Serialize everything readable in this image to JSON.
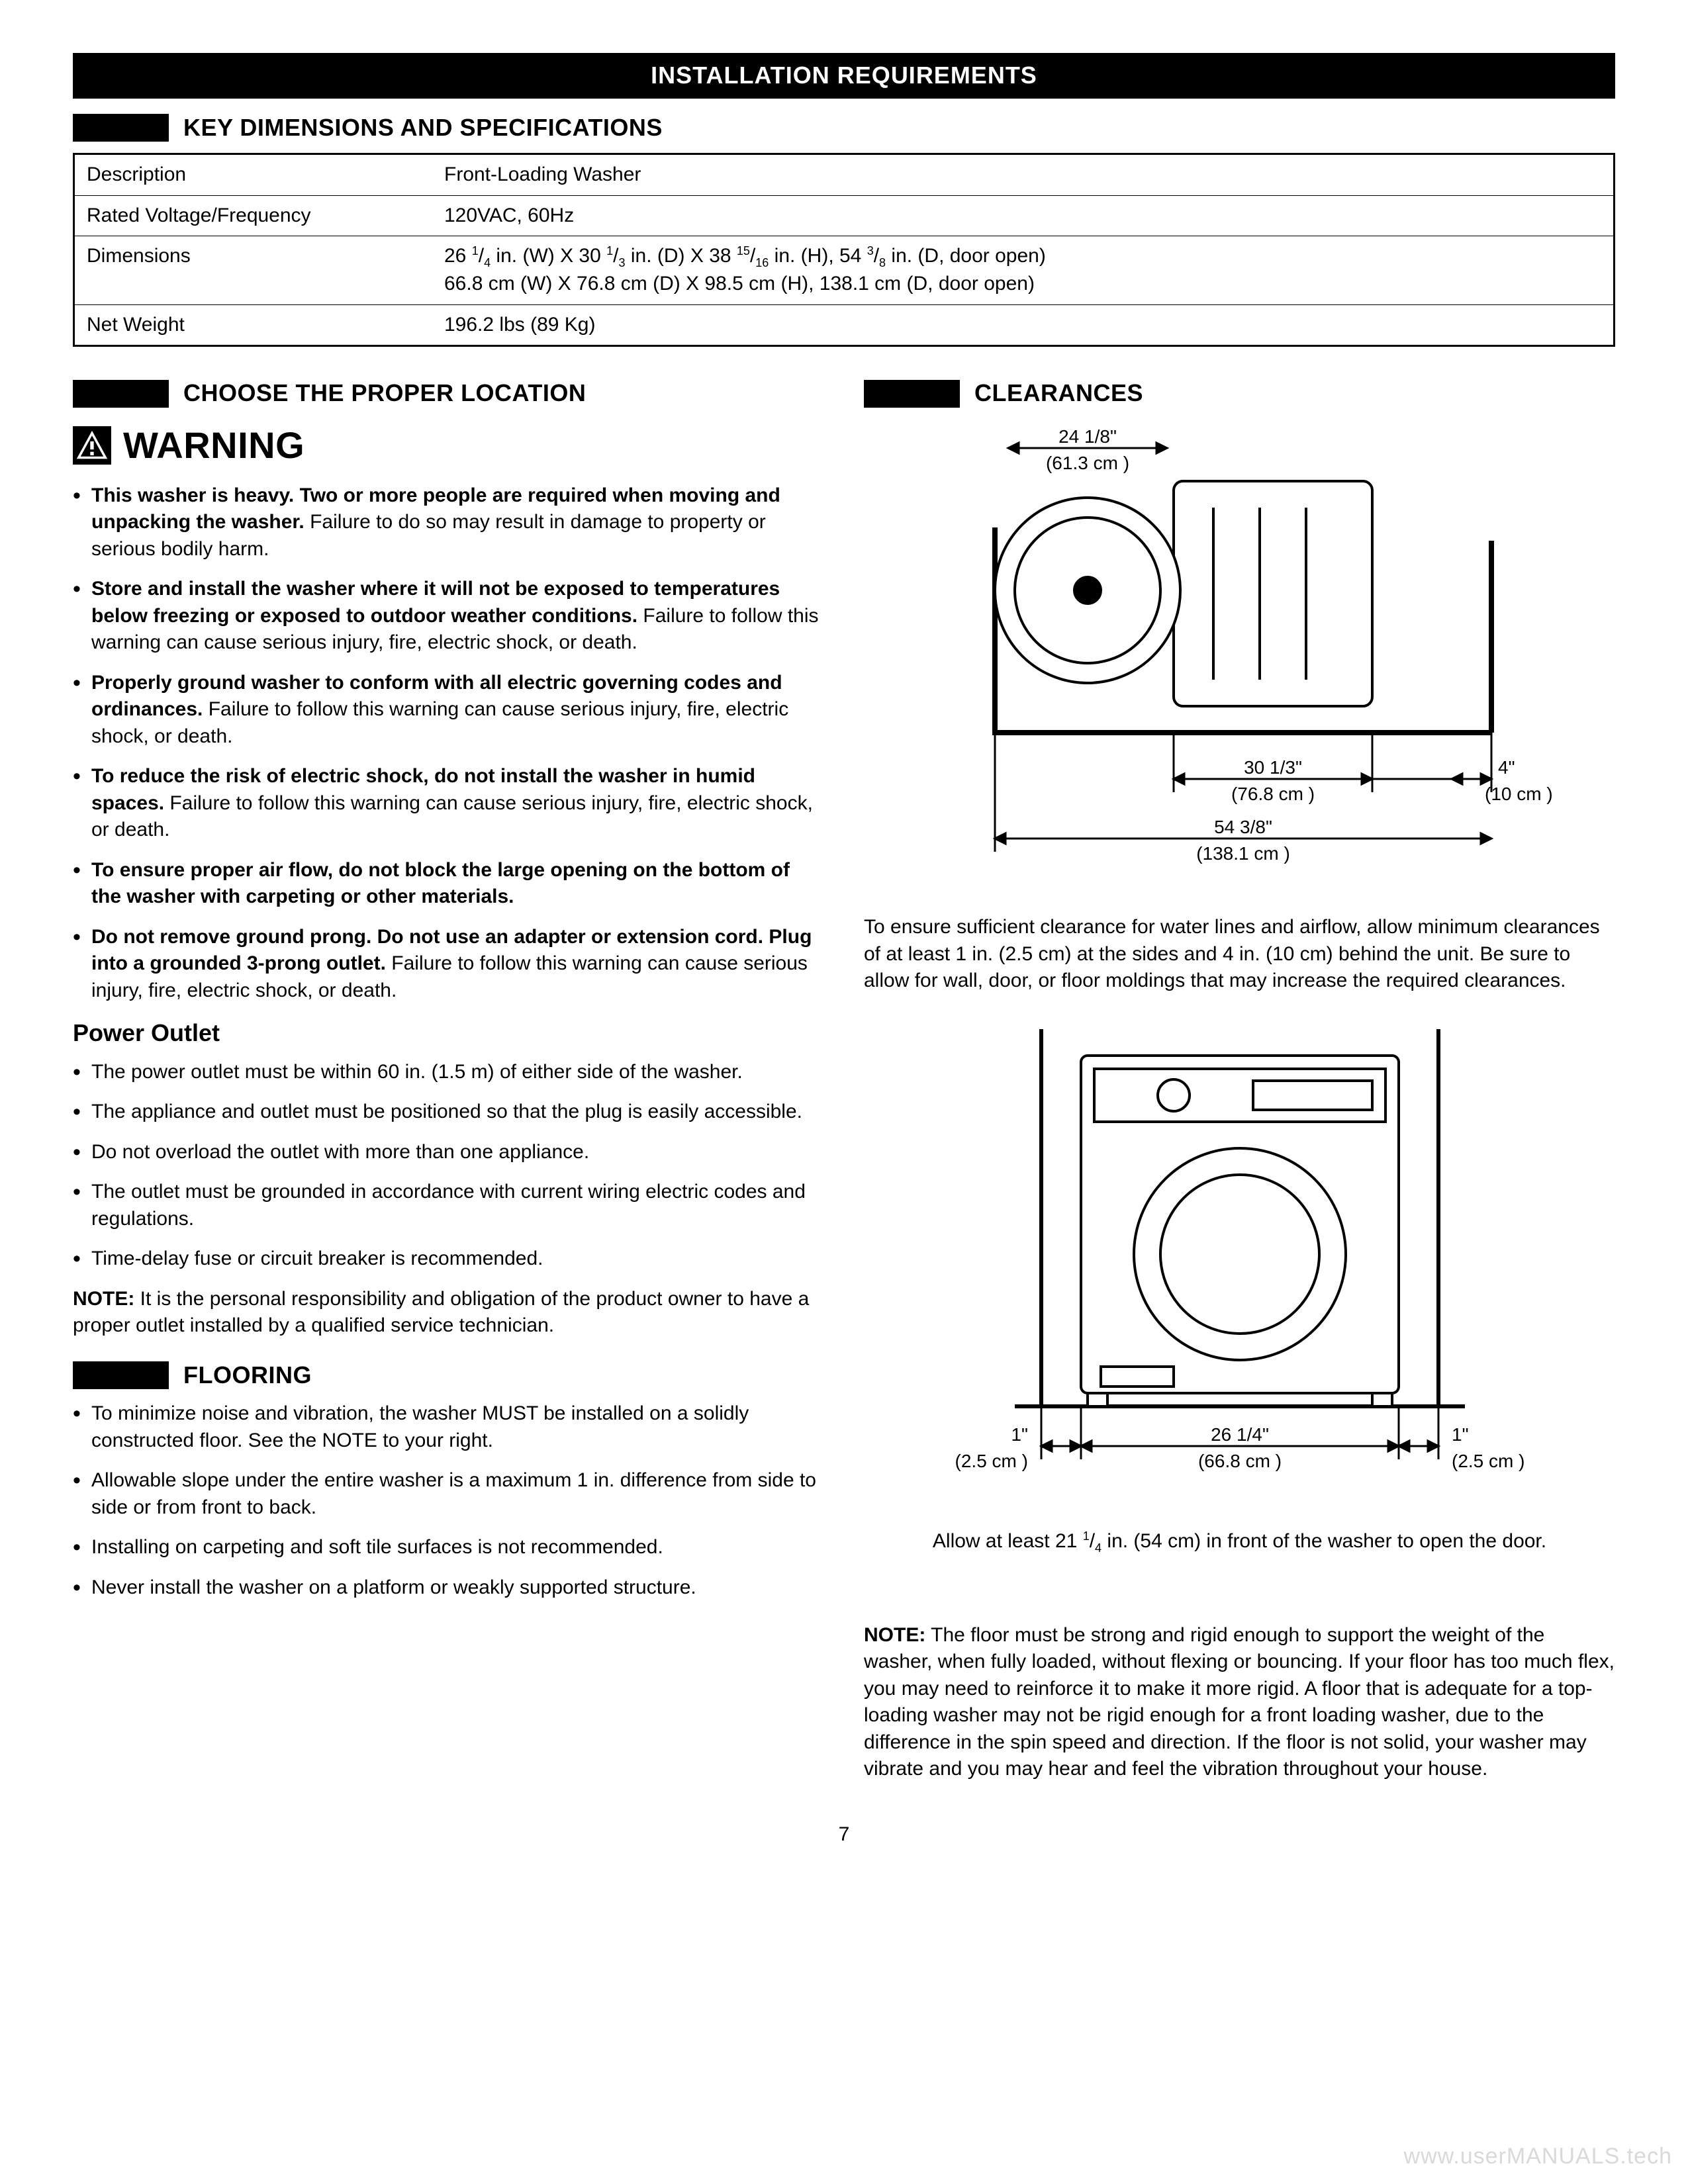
{
  "banner": "INSTALLATION REQUIREMENTS",
  "sections": {
    "keydim": "KEY DIMENSIONS AND SPECIFICATIONS",
    "choose": "CHOOSE THE PROPER LOCATION",
    "clear": "CLEARANCES",
    "floor": "FLOORING"
  },
  "spec": {
    "rows": [
      {
        "label": "Description",
        "value": "Front-Loading Washer"
      },
      {
        "label": "Rated Voltage/Frequency",
        "value": "120VAC, 60Hz"
      },
      {
        "label": "Dimensions",
        "value_html": "26 <sup>1</sup>/<sub>4</sub> in. (W) X 30 <sup>1</sup>/<sub>3</sub> in. (D) X 38 <sup>15</sup>/<sub>16</sub> in. (H), 54 <sup>3</sup>/<sub>8</sub> in. (D, door open)<br>66.8 cm (W) X 76.8 cm (D) X 98.5 cm (H), 138.1 cm (D, door open)"
      },
      {
        "label": "Net Weight",
        "value": "196.2 lbs (89 Kg)"
      }
    ]
  },
  "warning": {
    "label": "WARNING",
    "items": [
      {
        "bold": "This washer is heavy. Two or more people are required when  moving and unpacking the washer.",
        "rest": " Failure to do so may result in damage to property or serious bodily harm."
      },
      {
        "bold": "Store and install the washer where it will not be exposed to temperatures below freezing or exposed to outdoor weather conditions.",
        "rest": " Failure to follow this warning can cause serious injury, fire, electric shock, or death."
      },
      {
        "bold": "Properly ground washer to conform with all electric governing codes and ordinances.",
        "rest": " Failure to follow this warning can cause serious injury, fire, electric shock, or death."
      },
      {
        "bold": "To reduce the risk of electric shock, do not install the washer in humid spaces.",
        "rest": " Failure to follow this warning can cause serious injury, fire, electric shock, or death."
      },
      {
        "bold": "To ensure proper air flow, do not block the large opening on the bottom of the washer with carpeting or other materials.",
        "rest": ""
      },
      {
        "bold": "Do not remove ground prong. Do not use an adapter or extension cord. Plug into a grounded 3-prong outlet.",
        "rest": " Failure to follow this warning can cause serious injury, fire, electric shock, or death."
      }
    ]
  },
  "power": {
    "heading": "Power Outlet",
    "items": [
      "The power outlet must be within 60 in. (1.5 m) of either side of the washer.",
      "The appliance and outlet must be positioned so that the plug is easily accessible.",
      "Do not overload the outlet with more than one appliance.",
      "The outlet must be grounded in accordance with current wiring electric codes and regulations.",
      "Time-delay fuse or circuit breaker is recommended."
    ],
    "note_label": "NOTE:",
    "note": " It is the personal responsibility and obligation of the product owner to have a proper outlet installed by a qualified service technician."
  },
  "flooring": {
    "items": [
      "To minimize noise and vibration, the washer MUST be installed on a solidly constructed floor. See the NOTE to your right.",
      "Allowable slope under the entire washer is a maximum 1 in. difference from side to side or from front to back.",
      "Installing on carpeting and soft tile surfaces is not recommended.",
      "Never install the washer on a platform or weakly supported structure."
    ]
  },
  "clear": {
    "para": "To ensure sufficient clearance for water lines and airflow, allow minimum clearances of at least 1 in. (2.5 cm) at the sides and 4 in. (10 cm) behind the unit. Be sure to allow for wall, door, or floor moldings that may increase the required clearances.",
    "caption_html": "Allow at least 21 <sup>1</sup>/<sub>4</sub> in. (54 cm) in front of the washer to open the door.",
    "note_label": "NOTE:",
    "note": " The floor must be strong and rigid enough to support the weight of the washer, when fully loaded, without flexing or bouncing. If your floor has too much flex, you may need to reinforce it to make it more rigid. A floor that is adequate for a top-loading washer may not be rigid enough for a front loading washer, due to the difference in the spin speed and direction. If the floor is not solid, your washer may vibrate and you may hear and feel the vibration throughout your house."
  },
  "diagram_top": {
    "stroke": "#000000",
    "fill": "#ffffff",
    "labels": {
      "top_in": "24 1/8\"",
      "top_cm": "(61.3 cm )",
      "depth_in": "30 1/3\"",
      "depth_cm": "(76.8 cm )",
      "back_in": "4\"",
      "back_cm": "(10 cm )",
      "total_in": "54 3/8\"",
      "total_cm": "(138.1 cm )"
    }
  },
  "diagram_front": {
    "stroke": "#000000",
    "fill": "#ffffff",
    "labels": {
      "side_in": "1\"",
      "side_cm": "(2.5 cm )",
      "width_in": "26 1/4\"",
      "width_cm": "(66.8 cm )"
    }
  },
  "page": "7",
  "watermark": "www.userMANUALS.tech"
}
